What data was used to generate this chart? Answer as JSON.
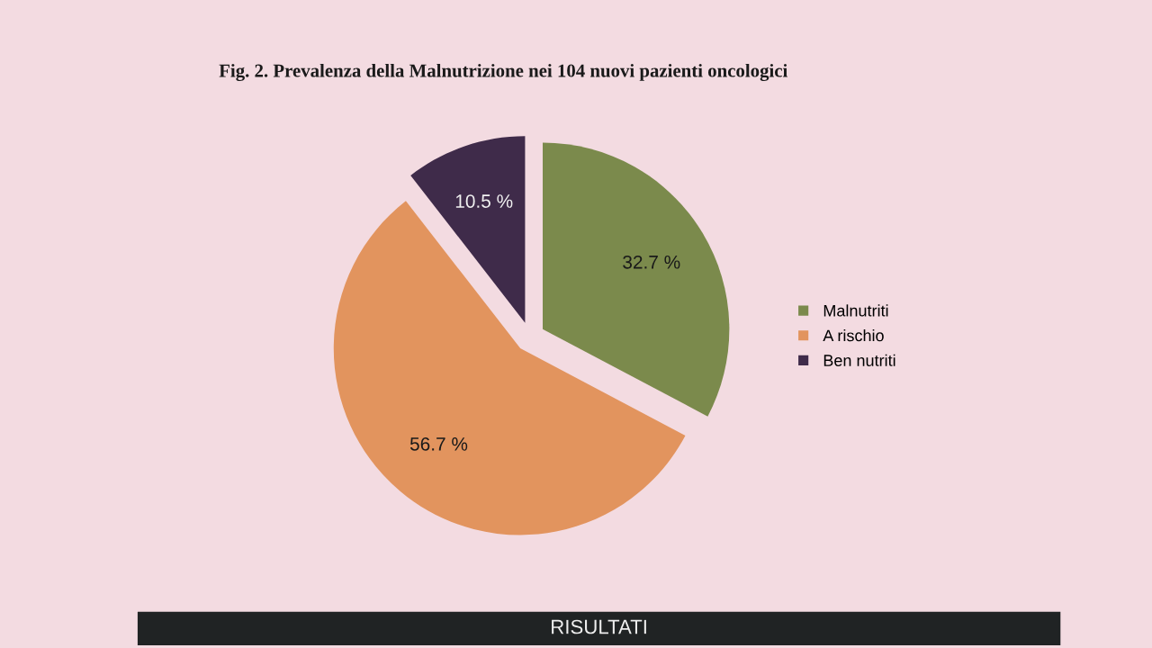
{
  "chart_data": {
    "type": "pie",
    "title": "Fig. 2. Prevalenza della Malnutrizione nei 104 nuovi pazienti oncologici",
    "categories": [
      "Malnutriti",
      "A rischio",
      "Ben nutriti"
    ],
    "values": [
      32.7,
      56.7,
      10.5
    ],
    "value_labels": [
      "32.7 %",
      "56.7 %",
      "10.5 %"
    ],
    "colors": [
      "#7b8a4c",
      "#e2945e",
      "#3f2b4a"
    ],
    "legend": "right",
    "annotations": [
      "RISULTATI"
    ]
  }
}
